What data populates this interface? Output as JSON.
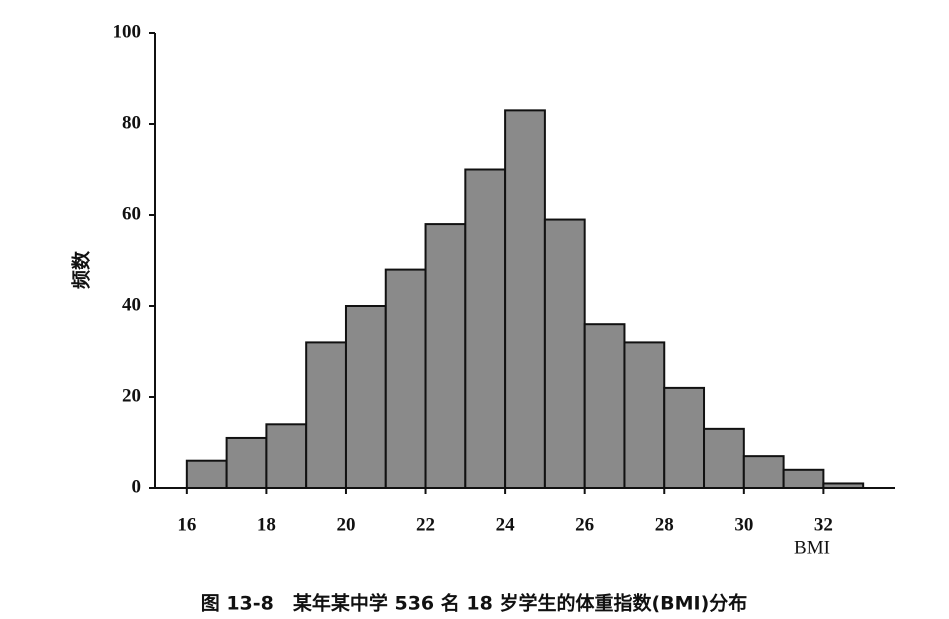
{
  "chart_data": {
    "type": "histogram",
    "title": "图 13-8　某年某中学 536 名 18 岁学生的体重指数(BMI)分布",
    "x_label": "BMI",
    "y_label": "频数",
    "bins": [
      16,
      17,
      18,
      19,
      20,
      21,
      22,
      23,
      24,
      25,
      26,
      27,
      28,
      29,
      30,
      31,
      32,
      33
    ],
    "values": [
      6,
      11,
      14,
      32,
      40,
      48,
      58,
      70,
      83,
      59,
      36,
      32,
      22,
      13,
      7,
      4,
      1
    ],
    "color": "#8a8a8a",
    "xlim": [
      15.2,
      33.8
    ],
    "xticks": [
      16,
      18,
      20,
      22,
      24,
      26,
      28,
      30,
      32
    ],
    "ylim": [
      0,
      100
    ],
    "yticks": [
      0,
      20,
      40,
      60,
      80,
      100
    ]
  }
}
